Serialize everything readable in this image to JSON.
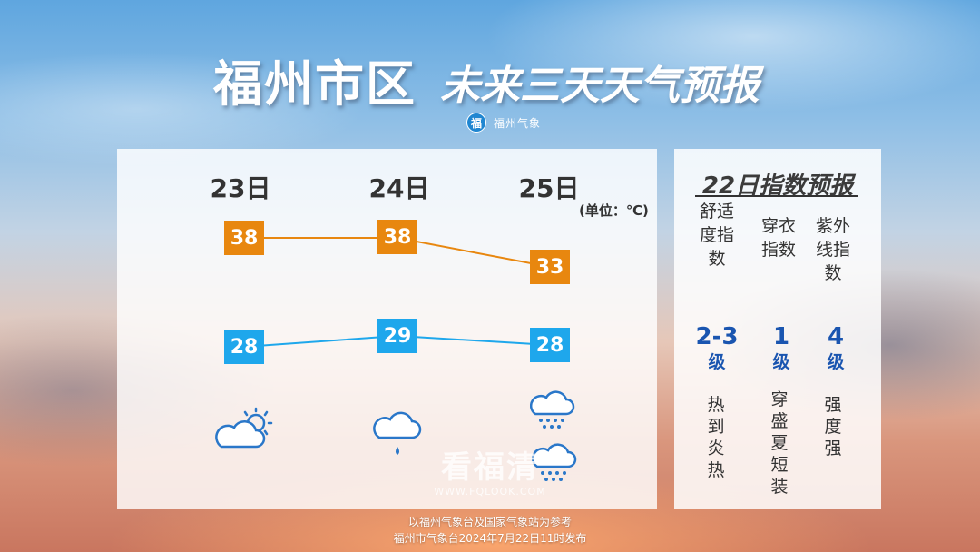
{
  "title": {
    "main": "福州市区",
    "sub": "未来三天天气预报"
  },
  "brand": {
    "logo_char": "福",
    "name": "福州气象"
  },
  "forecast": {
    "unit": "(单位：℃)",
    "days": [
      {
        "date": "23日",
        "high": "38",
        "low": "28",
        "icon": "partly-cloudy-sunny-icon"
      },
      {
        "date": "24日",
        "high": "38",
        "low": "29",
        "icon": "cloud-rain-icon"
      },
      {
        "date": "25日",
        "high": "33",
        "low": "28",
        "icon": "cloud-rain-icon"
      }
    ],
    "colors": {
      "high": "#e8870f",
      "low": "#1ea7ec"
    }
  },
  "index": {
    "title": "22日指数预报",
    "items": [
      {
        "name": "舒适度指数",
        "value": "2-3",
        "level": "级",
        "desc": "热到炎热"
      },
      {
        "name": "穿衣指数",
        "value": "1",
        "level": "级",
        "desc": "穿盛夏短装"
      },
      {
        "name": "紫外线指数",
        "value": "4",
        "level": "级",
        "desc": "强度 强"
      }
    ]
  },
  "watermark": {
    "main": "看福清",
    "url": "WWW.FQLOOK.COM"
  },
  "footer": {
    "line1": "以福州气象台及国家气象站为参考",
    "line2": "福州市气象台2024年7月22日11时发布"
  }
}
